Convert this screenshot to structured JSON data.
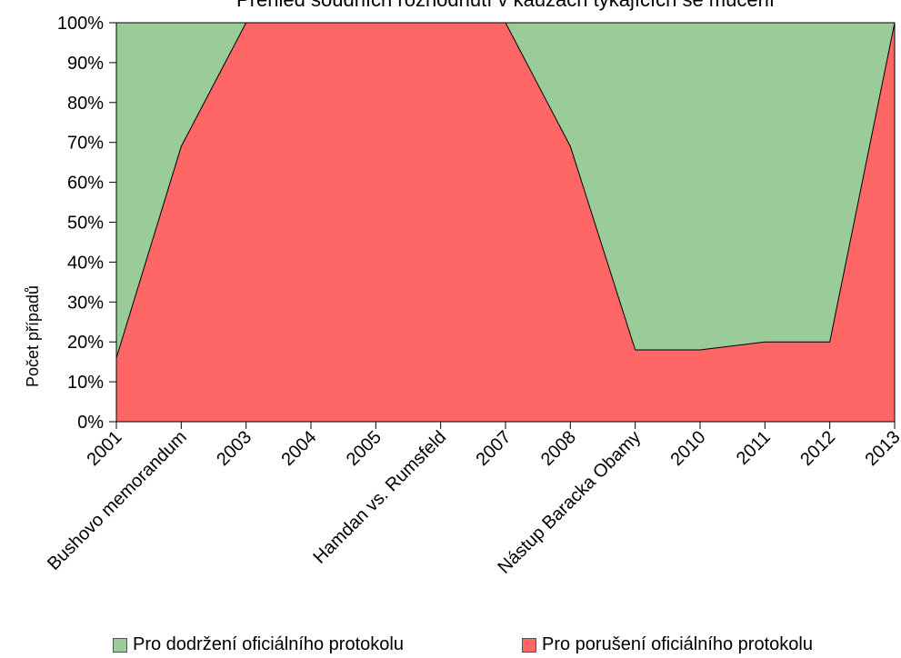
{
  "chart_data": {
    "type": "area",
    "stacked": true,
    "percent": true,
    "title": "Přehled soudních rozhodnutí v kauzách týkajících se mučení",
    "ylabel": "Počet případů",
    "xlabel": "",
    "categories": [
      "2001",
      "Bushovo memorandum",
      "2003",
      "2004",
      "2005",
      "Hamdan vs. Rumsfeld",
      "2007",
      "2008",
      "Nástup Baracka Obamy",
      "2010",
      "2011",
      "2012",
      "2013"
    ],
    "yticks": [
      "0%",
      "10%",
      "20%",
      "30%",
      "40%",
      "50%",
      "60%",
      "70%",
      "80%",
      "90%",
      "100%"
    ],
    "ylim": [
      0,
      100
    ],
    "series": [
      {
        "name": "Pro porušení oficiálního protokolu",
        "color": "#ff6666",
        "values": [
          16,
          69,
          100,
          100,
          100,
          100,
          100,
          69,
          18,
          18,
          20,
          20,
          100
        ]
      },
      {
        "name": "Pro dodržení oficiálního protokolu",
        "color": "#99cc99",
        "values": [
          84,
          31,
          0,
          0,
          0,
          0,
          0,
          31,
          82,
          82,
          80,
          80,
          0
        ]
      }
    ],
    "grid": false,
    "legend_position": "bottom"
  }
}
